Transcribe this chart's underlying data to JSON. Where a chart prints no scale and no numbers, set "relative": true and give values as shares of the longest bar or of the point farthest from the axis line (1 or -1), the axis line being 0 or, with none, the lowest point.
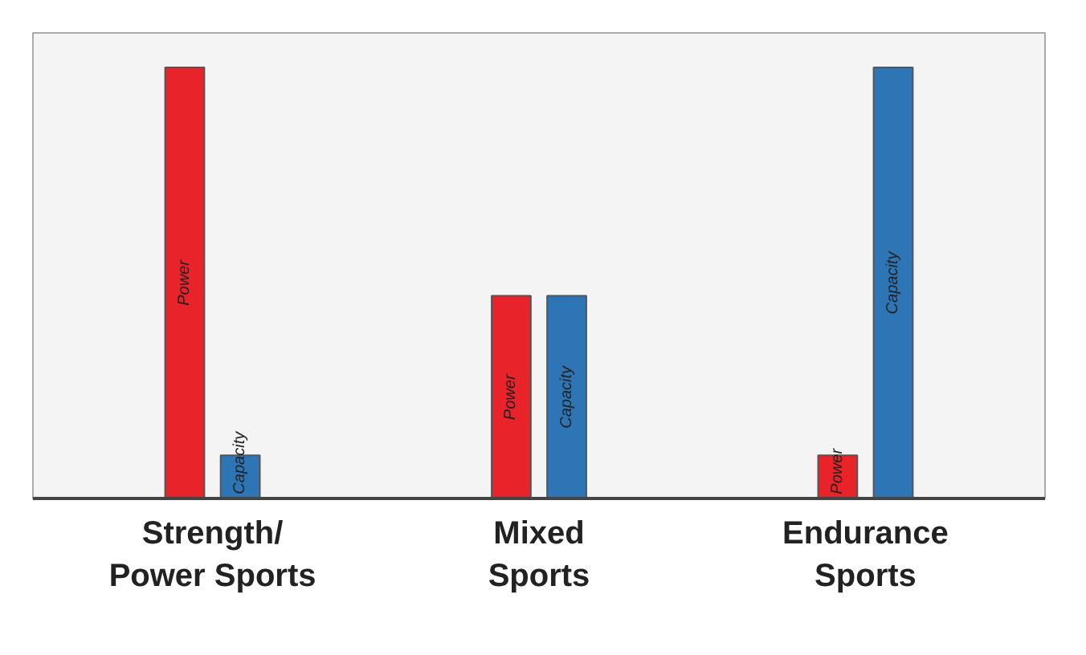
{
  "chart_data": {
    "type": "bar",
    "relative": true,
    "categories": [
      "Strength/\nPower Sports",
      "Mixed\nSports",
      "Endurance\nSports"
    ],
    "series": [
      {
        "name": "Power",
        "color": "#e8232a",
        "values": [
          1,
          0.47,
          0.1
        ]
      },
      {
        "name": "Capacity",
        "color": "#2e75b6",
        "values": [
          0.1,
          0.47,
          1
        ]
      }
    ],
    "grid": false
  }
}
